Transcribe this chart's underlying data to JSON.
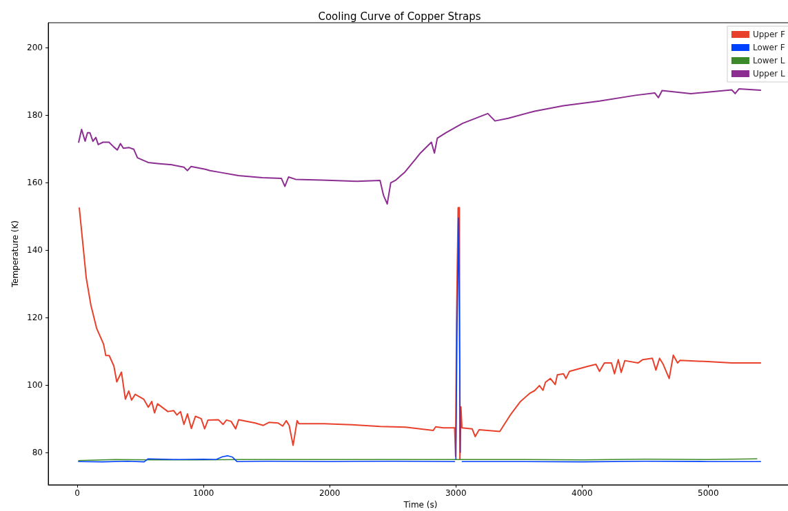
{
  "chart_data": {
    "type": "line",
    "title": "Cooling Curve of Copper Straps",
    "xlabel": "Time (s)",
    "ylabel": "Temperature (K)",
    "xlim": [
      -230,
      5670
    ],
    "ylim": [
      70.4,
      207.3
    ],
    "xticks": [
      0,
      1000,
      2000,
      3000,
      4000,
      5000
    ],
    "yticks": [
      80,
      100,
      120,
      140,
      160,
      180,
      200
    ],
    "grid": false,
    "legend": "top right",
    "marker": "none",
    "line_style": "solid",
    "series": [
      {
        "name": "Upper F",
        "color": "#e8402a",
        "x": [
          16,
          44,
          71,
          108,
          153,
          208,
          226,
          253,
          290,
          313,
          350,
          381,
          408,
          430,
          459,
          526,
          563,
          590,
          612,
          636,
          718,
          763,
          790,
          818,
          845,
          873,
          904,
          936,
          982,
          1009,
          1036,
          1118,
          1155,
          1182,
          1219,
          1255,
          1279,
          1410,
          1474,
          1519,
          1592,
          1628,
          1656,
          1679,
          1710,
          1742,
          1756,
          1956,
          2175,
          2400,
          2601,
          2820,
          2840,
          2900,
          2990,
          2998,
          3005,
          3018,
          3028,
          3032,
          3040,
          3048,
          3129,
          3153,
          3184,
          3348,
          3437,
          3512,
          3585,
          3624,
          3662,
          3690,
          3710,
          3749,
          3787,
          3804,
          3853,
          3872,
          3900,
          4044,
          4110,
          4138,
          4177,
          4233,
          4257,
          4287,
          4310,
          4339,
          4443,
          4481,
          4557,
          4585,
          4614,
          4643,
          4690,
          4723,
          4757,
          4776,
          4995,
          5186,
          5414
        ],
        "values": [
          152.4,
          141.9,
          131.7,
          123.6,
          116.8,
          112.1,
          108.7,
          108.7,
          105.6,
          100.9,
          103.8,
          95.8,
          98.2,
          95.5,
          97.2,
          95.8,
          93.4,
          95.1,
          91.7,
          94.4,
          92.1,
          92.4,
          91.1,
          92.1,
          88.3,
          91.4,
          87.1,
          90.7,
          90.0,
          87.0,
          89.6,
          89.7,
          88.3,
          89.6,
          89.2,
          87.0,
          89.7,
          88.7,
          88.0,
          88.9,
          88.7,
          87.8,
          89.4,
          88.0,
          82.1,
          89.4,
          88.5,
          88.5,
          88.2,
          87.7,
          87.5,
          86.5,
          87.6,
          87.3,
          87.3,
          78.8,
          118,
          152.5,
          152.5,
          78,
          93.5,
          87.3,
          87.0,
          84.7,
          86.7,
          86.2,
          91.4,
          95.1,
          97.5,
          98.3,
          99.8,
          98.4,
          100.8,
          101.9,
          100.1,
          103.0,
          103.3,
          101.9,
          104.0,
          105.5,
          106.1,
          104.0,
          106.5,
          106.5,
          103.3,
          107.5,
          103.7,
          107.2,
          106.5,
          107.5,
          107.9,
          104.4,
          107.9,
          106.1,
          101.9,
          108.8,
          106.5,
          107.3,
          106.9,
          106.5,
          106.5
        ]
      },
      {
        "name": "Lower F",
        "color": "#0040ff",
        "x": [
          10,
          200,
          400,
          530,
          560,
          800,
          1000,
          1100,
          1150,
          1190,
          1230,
          1265,
          1500,
          2000,
          2500,
          2990,
          2995,
          3000,
          3010,
          3022,
          3035,
          3044,
          3050,
          3500,
          4000,
          4500,
          5000,
          5415
        ],
        "values": [
          77.3,
          77.2,
          77.4,
          77.2,
          78.1,
          77.9,
          78.0,
          77.9,
          78.7,
          79.0,
          78.6,
          77.3,
          77.4,
          77.3,
          77.4,
          77.3,
          null,
          78,
          118,
          149.5,
          80,
          null,
          77.3,
          77.3,
          77.2,
          77.4,
          77.3,
          77.3
        ]
      },
      {
        "name": "Lower L",
        "color": "#3a8a2a",
        "x": [
          10,
          300,
          600,
          1000,
          1300,
          2000,
          3000,
          3500,
          4000,
          4500,
          5000,
          5385
        ],
        "values": [
          77.6,
          77.9,
          77.8,
          77.8,
          77.9,
          77.9,
          77.9,
          77.9,
          77.8,
          78.0,
          77.9,
          78.1
        ]
      },
      {
        "name": "Upper L",
        "color": "#8b2d91",
        "x": [
          11,
          34,
          62,
          81,
          100,
          124,
          147,
          166,
          204,
          251,
          289,
          317,
          342,
          365,
          411,
          448,
          477,
          562,
          637,
          750,
          845,
          873,
          901,
          1014,
          1052,
          1127,
          1278,
          1466,
          1617,
          1645,
          1674,
          1730,
          1938,
          2220,
          2399,
          2427,
          2456,
          2484,
          2521,
          2597,
          2682,
          2719,
          2730,
          2806,
          2830,
          2853,
          2920,
          3053,
          3253,
          3310,
          3415,
          3624,
          3853,
          4138,
          4424,
          4576,
          4605,
          4634,
          4862,
          5186,
          5213,
          5243,
          5414
        ],
        "values": [
          171.9,
          175.7,
          172.2,
          174.7,
          174.7,
          172.2,
          173.3,
          171.2,
          171.9,
          171.9,
          170.5,
          169.6,
          171.5,
          170.1,
          170.3,
          169.8,
          167.3,
          165.9,
          165.6,
          165.2,
          164.5,
          163.5,
          164.7,
          163.9,
          163.5,
          163.0,
          162.0,
          161.4,
          161.2,
          158.8,
          161.6,
          160.9,
          160.7,
          160.3,
          160.6,
          156.1,
          153.6,
          159.9,
          160.6,
          163.1,
          167.0,
          168.7,
          169.1,
          171.9,
          168.7,
          173.1,
          174.7,
          177.5,
          180.4,
          178.2,
          179.0,
          181.1,
          182.7,
          184.1,
          185.8,
          186.5,
          185.1,
          187.2,
          186.3,
          187.4,
          186.3,
          187.7,
          187.3
        ]
      }
    ]
  }
}
